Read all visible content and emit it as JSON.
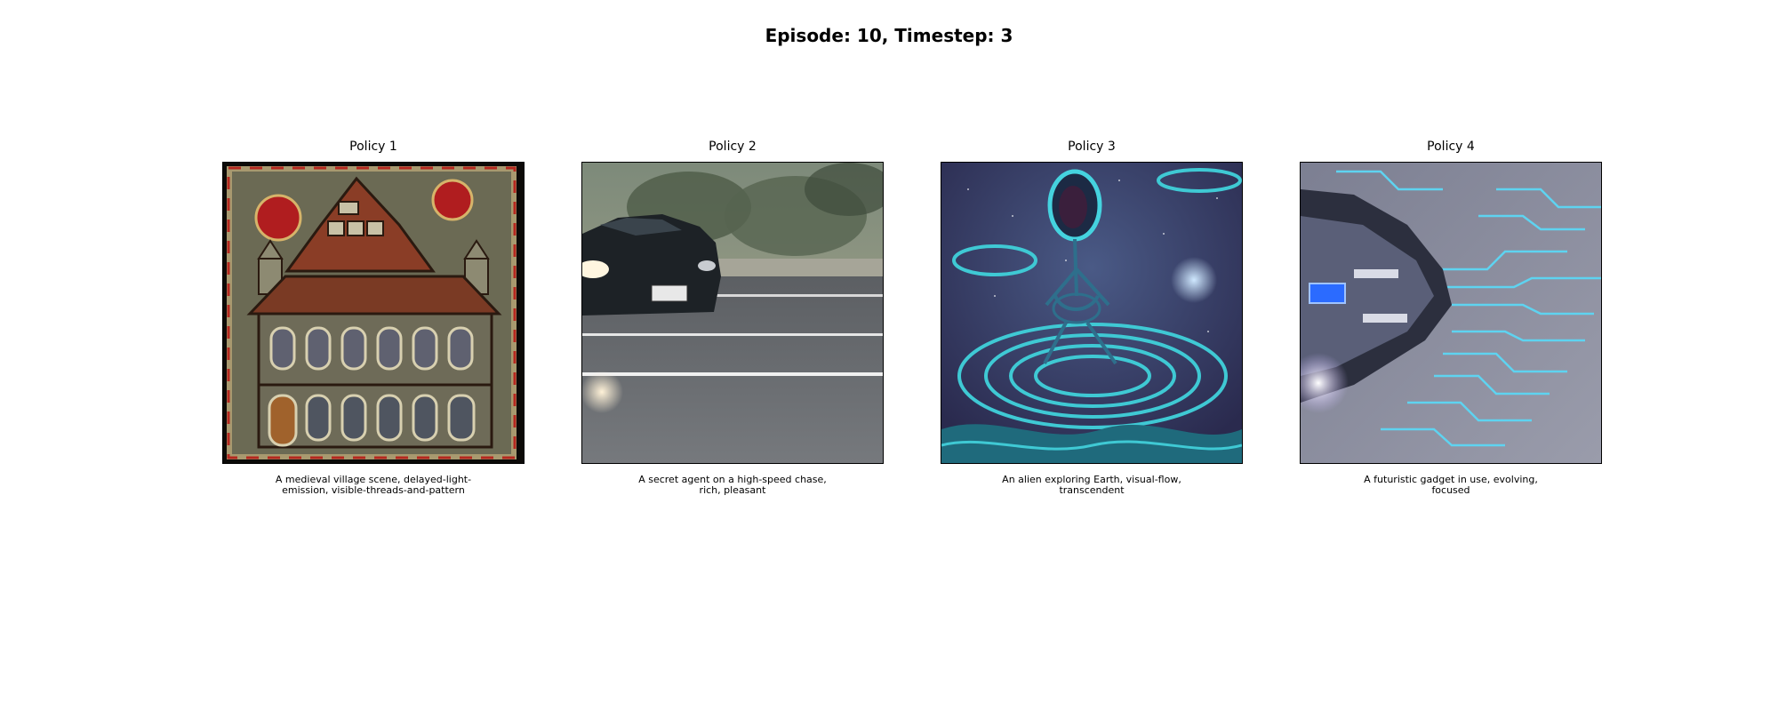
{
  "figure": {
    "title": "Episode: 10, Timestep: 3"
  },
  "panels": [
    {
      "title": "Policy 1",
      "caption": "A medieval village scene, delayed-light-\nemission, visible-threads-and-pattern",
      "image": "embroidered-medieval-house-image"
    },
    {
      "title": "Policy 2",
      "caption": "A secret agent on a high-speed chase,\nrich, pleasant",
      "image": "dark-car-on-road-image"
    },
    {
      "title": "Policy 3",
      "caption": "An alien exploring Earth, visual-flow,\ntranscendent",
      "image": "teal-alien-swirl-image"
    },
    {
      "title": "Policy 4",
      "caption": "A futuristic gadget in use, evolving,\nfocused",
      "image": "futuristic-gadget-circuit-image"
    }
  ]
}
